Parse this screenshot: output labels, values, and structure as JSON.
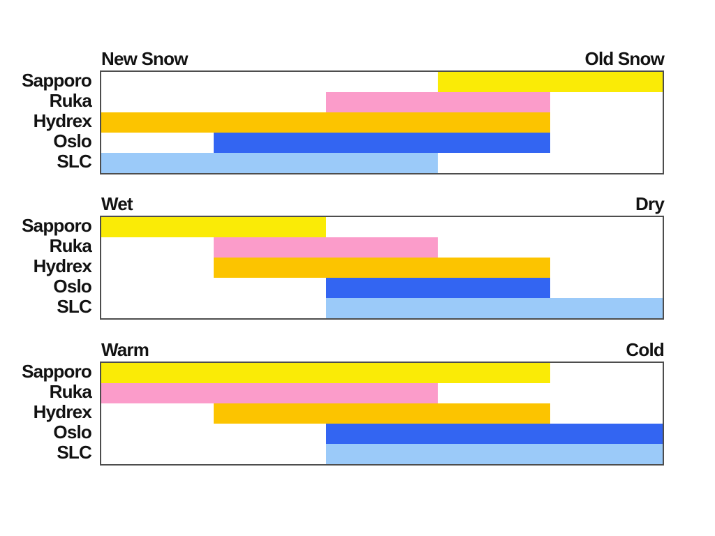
{
  "figure": {
    "background": "#ffffff",
    "plot_border_color": "#4d4d4d",
    "text_color": "#121212"
  },
  "chart_data": [
    {
      "type": "bar",
      "subtype": "horizontal-range",
      "left_label": "New Snow",
      "right_label": "Old Snow",
      "categories": [
        "Sapporo",
        "Ruka",
        "Hydrex",
        "Oslo",
        "SLC"
      ],
      "series": [
        {
          "name": "Sapporo",
          "range": [
            60,
            100
          ],
          "color": "#FAEB06"
        },
        {
          "name": "Ruka",
          "range": [
            40,
            80
          ],
          "color": "#FB9CCA"
        },
        {
          "name": "Hydrex",
          "range": [
            0,
            80
          ],
          "color": "#FCC400"
        },
        {
          "name": "Oslo",
          "range": [
            20,
            80
          ],
          "color": "#3365F2"
        },
        {
          "name": "SLC",
          "range": [
            0,
            60
          ],
          "color": "#9BCAF9"
        }
      ],
      "xlim": [
        0,
        100
      ],
      "grid": false,
      "legend": false
    },
    {
      "type": "bar",
      "subtype": "horizontal-range",
      "left_label": "Wet",
      "right_label": "Dry",
      "categories": [
        "Sapporo",
        "Ruka",
        "Hydrex",
        "Oslo",
        "SLC"
      ],
      "series": [
        {
          "name": "Sapporo",
          "range": [
            0,
            40
          ],
          "color": "#FAEB06"
        },
        {
          "name": "Ruka",
          "range": [
            20,
            60
          ],
          "color": "#FB9CCA"
        },
        {
          "name": "Hydrex",
          "range": [
            20,
            80
          ],
          "color": "#FCC400"
        },
        {
          "name": "Oslo",
          "range": [
            40,
            80
          ],
          "color": "#3365F2"
        },
        {
          "name": "SLC",
          "range": [
            40,
            100
          ],
          "color": "#9BCAF9"
        }
      ],
      "xlim": [
        0,
        100
      ],
      "grid": false,
      "legend": false
    },
    {
      "type": "bar",
      "subtype": "horizontal-range",
      "left_label": "Warm",
      "right_label": "Cold",
      "categories": [
        "Sapporo",
        "Ruka",
        "Hydrex",
        "Oslo",
        "SLC"
      ],
      "series": [
        {
          "name": "Sapporo",
          "range": [
            0,
            80
          ],
          "color": "#FAEB06"
        },
        {
          "name": "Ruka",
          "range": [
            0,
            60
          ],
          "color": "#FB9CCA"
        },
        {
          "name": "Hydrex",
          "range": [
            20,
            80
          ],
          "color": "#FCC400"
        },
        {
          "name": "Oslo",
          "range": [
            40,
            100
          ],
          "color": "#3365F2"
        },
        {
          "name": "SLC",
          "range": [
            40,
            100
          ],
          "color": "#9BCAF9"
        }
      ],
      "xlim": [
        0,
        100
      ],
      "grid": false,
      "legend": false
    }
  ]
}
